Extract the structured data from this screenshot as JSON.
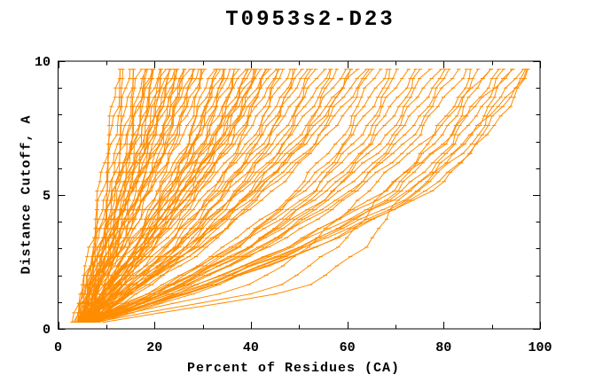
{
  "window": {
    "background": "#ffffff"
  },
  "chart_data": {
    "type": "line",
    "title": "T0953s2-D23",
    "xlabel": "Percent of Residues (CA)",
    "ylabel": "Distance Cutoff, A",
    "xlim": [
      0,
      100
    ],
    "ylim": [
      0,
      10
    ],
    "x_major_ticks": [
      0,
      20,
      40,
      60,
      80,
      100
    ],
    "x_minor_ticks": [
      10,
      30,
      50,
      70,
      90
    ],
    "y_major_ticks": [
      0,
      5,
      10
    ],
    "y_minor_ticks": [
      1,
      2,
      3,
      4,
      6,
      7,
      8,
      9
    ],
    "x_tick_labels": [
      "0",
      "20",
      "40",
      "60",
      "80",
      "100"
    ],
    "y_tick_labels": [
      "0",
      "5",
      "10"
    ],
    "grid": false,
    "legend": null,
    "line_color": "#ff8c00",
    "axis_color": "#000000",
    "tick_style": "inward-mirrored",
    "marker": "horizontal-dash-at-each-cutoff-sample",
    "sample_cutoffs": {
      "start": 0.25,
      "step": 0.35,
      "count": 28
    },
    "control_cutoffs": [
      0.25,
      1.5,
      3,
      5,
      7,
      9.7
    ],
    "series_units": {
      "x": "percent of residues (CA)",
      "y": "distance cutoff, angstroms"
    },
    "n_curves": 105,
    "curves": [
      [
        3.2,
        5.0,
        6.6,
        8.2,
        10.0,
        12.4
      ],
      [
        3.6,
        5.4,
        7.0,
        8.8,
        10.8,
        13.0
      ],
      [
        4.0,
        5.8,
        7.5,
        9.4,
        11.4,
        13.8
      ],
      [
        4.2,
        6.2,
        8.0,
        10.0,
        12.0,
        14.6
      ],
      [
        4.5,
        6.6,
        8.6,
        10.6,
        12.8,
        15.3
      ],
      [
        4.8,
        7.0,
        9.0,
        11.2,
        13.4,
        16.0
      ],
      [
        3.5,
        5.1,
        7.6,
        10.5,
        13.6,
        17.0
      ],
      [
        5.0,
        6.5,
        9.0,
        11.9,
        14.7,
        17.6
      ],
      [
        4.0,
        5.7,
        8.3,
        11.4,
        14.6,
        18.1
      ],
      [
        5.5,
        7.1,
        9.6,
        12.5,
        15.7,
        18.7
      ],
      [
        4.4,
        6.2,
        8.9,
        12.1,
        15.5,
        19.2
      ],
      [
        3.8,
        5.6,
        8.3,
        11.6,
        15.1,
        19.0
      ],
      [
        6.0,
        7.7,
        10.2,
        13.2,
        16.4,
        19.8
      ],
      [
        4.8,
        6.7,
        9.5,
        12.9,
        16.4,
        20.3
      ],
      [
        5.2,
        7.1,
        10.0,
        13.4,
        17.0,
        20.9
      ],
      [
        4.1,
        6.2,
        9.3,
        13.1,
        17.1,
        21.4
      ],
      [
        6.6,
        8.4,
        11.2,
        14.6,
        18.2,
        21.8
      ],
      [
        5.8,
        7.8,
        10.7,
        14.2,
        18.0,
        22.0
      ],
      [
        4.6,
        6.8,
        10.0,
        13.9,
        18.0,
        22.5
      ],
      [
        6.2,
        8.3,
        11.3,
        14.9,
        18.9,
        23.1
      ],
      [
        5.0,
        7.2,
        10.6,
        14.7,
        19.0,
        23.6
      ],
      [
        3.9,
        6.3,
        9.9,
        14.3,
        18.9,
        24.0
      ],
      [
        5.4,
        7.7,
        11.1,
        15.3,
        19.6,
        24.2
      ],
      [
        4.3,
        6.7,
        10.3,
        14.9,
        19.6,
        24.7
      ],
      [
        6.5,
        8.8,
        12.0,
        16.3,
        20.8,
        25.3
      ],
      [
        4.9,
        7.4,
        11.1,
        15.8,
        20.7,
        25.8
      ],
      [
        7.2,
        9.4,
        12.8,
        17.2,
        21.6,
        26.0
      ],
      [
        5.6,
        8.1,
        11.9,
        16.6,
        21.5,
        26.4
      ],
      [
        4.5,
        7.2,
        11.2,
        16.2,
        21.4,
        27.0
      ],
      [
        6.8,
        9.3,
        12.9,
        17.5,
        22.5,
        27.5
      ],
      [
        5.1,
        7.9,
        12.1,
        17.3,
        22.7,
        28.1
      ],
      [
        5.9,
        8.6,
        12.8,
        18.0,
        23.4,
        28.6
      ],
      [
        4.7,
        7.6,
        12.1,
        17.7,
        23.3,
        29.2
      ],
      [
        6.3,
        9.1,
        13.4,
        18.8,
        24.3,
        29.7
      ],
      [
        5.3,
        8.3,
        12.9,
        18.6,
        24.4,
        30.3
      ],
      [
        7.0,
        9.9,
        14.2,
        19.8,
        25.4,
        30.8
      ],
      [
        5.5,
        9.5,
        14.8,
        20.9,
        26.7,
        32.0
      ],
      [
        4.6,
        8.8,
        14.4,
        20.8,
        27.0,
        32.6
      ],
      [
        6.1,
        10.2,
        15.6,
        21.8,
        27.8,
        33.2
      ],
      [
        7.6,
        11.5,
        16.6,
        22.6,
        28.3,
        33.5
      ],
      [
        5.0,
        9.3,
        15.1,
        21.8,
        28.1,
        33.9
      ],
      [
        6.7,
        10.9,
        16.4,
        22.8,
        28.9,
        34.5
      ],
      [
        5.3,
        9.8,
        15.7,
        22.6,
        29.1,
        35.1
      ],
      [
        7.3,
        11.6,
        17.3,
        23.8,
        30.1,
        35.8
      ],
      [
        4.4,
        9.2,
        15.6,
        23.0,
        30.0,
        36.4
      ],
      [
        5.8,
        10.5,
        16.7,
        24.1,
        31.0,
        37.0
      ],
      [
        6.4,
        11.1,
        17.4,
        24.8,
        31.7,
        37.7
      ],
      [
        4.8,
        9.8,
        16.5,
        24.2,
        31.6,
        38.3
      ],
      [
        7.0,
        11.8,
        18.2,
        25.8,
        32.6,
        38.9
      ],
      [
        5.2,
        10.4,
        17.2,
        25.2,
        32.5,
        39.6
      ],
      [
        6.0,
        11.1,
        18.0,
        26.0,
        33.4,
        40.2
      ],
      [
        4.5,
        9.9,
        17.2,
        25.5,
        33.3,
        40.8
      ],
      [
        3.9,
        9.5,
        17.0,
        25.6,
        33.6,
        41.0
      ],
      [
        6.9,
        12.1,
        19.0,
        27.2,
        34.7,
        41.5
      ],
      [
        5.6,
        11.0,
        18.2,
        26.7,
        34.5,
        42.1
      ],
      [
        7.4,
        12.7,
        19.7,
        28.0,
        35.6,
        42.7
      ],
      [
        4.9,
        10.7,
        18.3,
        27.3,
        35.5,
        43.4
      ],
      [
        6.2,
        11.9,
        19.5,
        28.4,
        36.5,
        44.0
      ],
      [
        5.4,
        11.3,
        19.1,
        28.2,
        36.6,
        44.6
      ],
      [
        6.6,
        12.4,
        20.4,
        29.5,
        37.7,
        45.3
      ],
      [
        5.7,
        13.0,
        21.8,
        30.7,
        38.8,
        46.0
      ],
      [
        6.3,
        13.6,
        22.6,
        31.6,
        39.9,
        47.0
      ],
      [
        4.7,
        12.5,
        22.0,
        31.5,
        40.2,
        48.0
      ],
      [
        7.1,
        14.6,
        23.9,
        33.1,
        41.5,
        49.0
      ],
      [
        5.1,
        13.2,
        23.1,
        32.9,
        41.9,
        50.0
      ],
      [
        8.0,
        15.6,
        24.7,
        34.1,
        42.7,
        50.6
      ],
      [
        6.5,
        14.5,
        24.4,
        34.2,
        43.2,
        51.2
      ],
      [
        5.9,
        14.3,
        24.5,
        34.7,
        44.1,
        52.4
      ],
      [
        7.7,
        16.0,
        26.1,
        36.2,
        45.3,
        53.6
      ],
      [
        5.3,
        14.2,
        25.1,
        36.0,
        45.9,
        54.8
      ],
      [
        6.8,
        15.7,
        26.5,
        37.3,
        47.1,
        56.0
      ],
      [
        4.9,
        14.3,
        25.8,
        37.3,
        47.8,
        57.2
      ],
      [
        7.2,
        16.4,
        27.7,
        39.0,
        49.2,
        58.4
      ],
      [
        5.6,
        15.3,
        27.2,
        39.0,
        49.8,
        59.6
      ],
      [
        6.4,
        16.2,
        28.2,
        40.1,
        51.0,
        60.8
      ],
      [
        4.6,
        14.8,
        27.5,
        40.0,
        51.2,
        61.4
      ],
      [
        5.2,
        15.4,
        27.9,
        40.4,
        51.7,
        62.0
      ],
      [
        7.5,
        17.5,
        29.8,
        42.0,
        53.2,
        63.2
      ],
      [
        6.0,
        16.5,
        29.4,
        42.2,
        53.9,
        64.4
      ],
      [
        6.9,
        17.4,
        30.4,
        43.3,
        55.1,
        65.5
      ],
      [
        6.1,
        20.6,
        34.5,
        48.5,
        58.1,
        66.6
      ],
      [
        7.3,
        21.9,
        35.8,
        49.8,
        59.5,
        68.0
      ],
      [
        5.5,
        20.9,
        35.6,
        50.3,
        60.5,
        69.5
      ],
      [
        6.7,
        22.1,
        36.9,
        51.7,
        62.0,
        71.0
      ],
      [
        5.8,
        21.8,
        37.1,
        52.5,
        63.1,
        72.5
      ],
      [
        7.8,
        23.7,
        38.9,
        54.1,
        64.7,
        74.0
      ],
      [
        6.2,
        22.8,
        38.8,
        54.7,
        65.8,
        75.5
      ],
      [
        7.0,
        23.8,
        39.9,
        56.0,
        67.2,
        77.0
      ],
      [
        5.4,
        23.0,
        39.8,
        56.6,
        68.4,
        78.6
      ],
      [
        6.6,
        24.2,
        41.1,
        58.1,
        69.8,
        80.1
      ],
      [
        7.6,
        25.4,
        42.4,
        59.4,
        71.2,
        81.6
      ],
      [
        5.9,
        24.4,
        42.2,
        60.0,
        72.3,
        83.1
      ],
      [
        6.8,
        25.5,
        43.4,
        61.3,
        73.7,
        84.6
      ],
      [
        7.1,
        27.7,
        46.6,
        67.2,
        77.5,
        86.2
      ],
      [
        5.7,
        27.0,
        46.8,
        68.1,
        78.8,
        87.8
      ],
      [
        6.9,
        28.4,
        48.2,
        69.6,
        80.3,
        89.4
      ],
      [
        7.7,
        29.4,
        49.4,
        71.0,
        81.8,
        91.0
      ],
      [
        6.0,
        28.5,
        49.3,
        71.8,
        83.1,
        92.6
      ],
      [
        7.4,
        30.0,
        50.8,
        73.4,
        84.6,
        94.2
      ],
      [
        6.5,
        29.7,
        51.2,
        74.4,
        86.0,
        95.8
      ],
      [
        8.2,
        31.3,
        52.7,
        75.9,
        87.4,
        97.2
      ],
      [
        7.0,
        30.7,
        52.6,
        76.3,
        88.2,
        98.2
      ],
      [
        7.2,
        38.0,
        52.0,
        63.0,
        76.0,
        90.0
      ],
      [
        8.0,
        45.0,
        58.0,
        67.0,
        80.0,
        94.0
      ],
      [
        9.0,
        52.0,
        63.0,
        72.0,
        85.0,
        97.5
      ]
    ]
  }
}
